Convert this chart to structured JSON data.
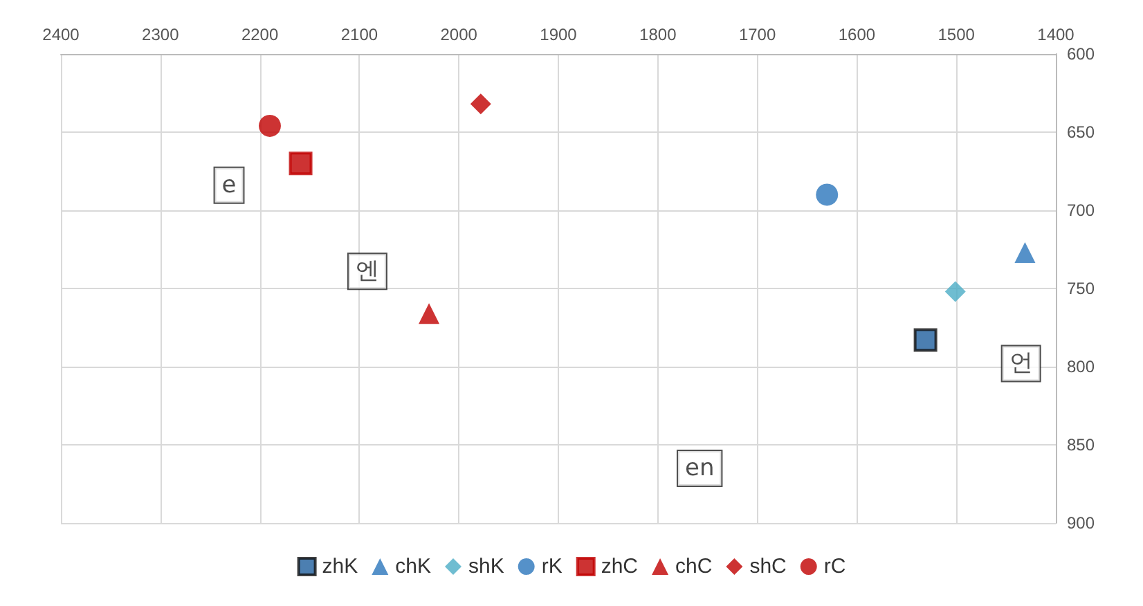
{
  "chart_data": {
    "type": "scatter",
    "xlim": [
      2400,
      1400
    ],
    "ylim": [
      900,
      600
    ],
    "xticks": [
      2400,
      2300,
      2200,
      2100,
      2000,
      1900,
      1800,
      1700,
      1600,
      1500,
      1400
    ],
    "yticks": [
      600,
      650,
      700,
      750,
      800,
      850,
      900
    ],
    "grid": true,
    "legend": "bottom",
    "series": [
      {
        "name": "zhK",
        "color": "#1f5f9e",
        "marker": "square",
        "x": [
          1531
        ],
        "values": [
          783
        ]
      },
      {
        "name": "chK",
        "color": "#2a75bb",
        "marker": "triangle",
        "x": [
          1431
        ],
        "values": [
          727
        ]
      },
      {
        "name": "shK",
        "color": "#4bacc6",
        "marker": "diamond",
        "x": [
          1501
        ],
        "values": [
          752
        ]
      },
      {
        "name": "rK",
        "color": "#2a75bb",
        "marker": "circle",
        "x": [
          1630
        ],
        "values": [
          690
        ]
      },
      {
        "name": "zhC",
        "color": "#c00000",
        "marker": "square",
        "x": [
          2159
        ],
        "values": [
          670
        ]
      },
      {
        "name": "chC",
        "color": "#c00000",
        "marker": "triangle",
        "x": [
          2030
        ],
        "values": [
          766
        ]
      },
      {
        "name": "shC",
        "color": "#c00000",
        "marker": "diamond",
        "x": [
          1978
        ],
        "values": [
          632
        ]
      },
      {
        "name": "rC",
        "color": "#c00000",
        "marker": "circle",
        "x": [
          2190
        ],
        "values": [
          646
        ]
      }
    ],
    "annotations": [
      {
        "text": "e",
        "x": 2231,
        "y": 684
      },
      {
        "text": "엔",
        "x": 2092,
        "y": 739
      },
      {
        "text": "en",
        "x": 1758,
        "y": 865
      },
      {
        "text": "언",
        "x": 1435,
        "y": 798
      }
    ]
  }
}
